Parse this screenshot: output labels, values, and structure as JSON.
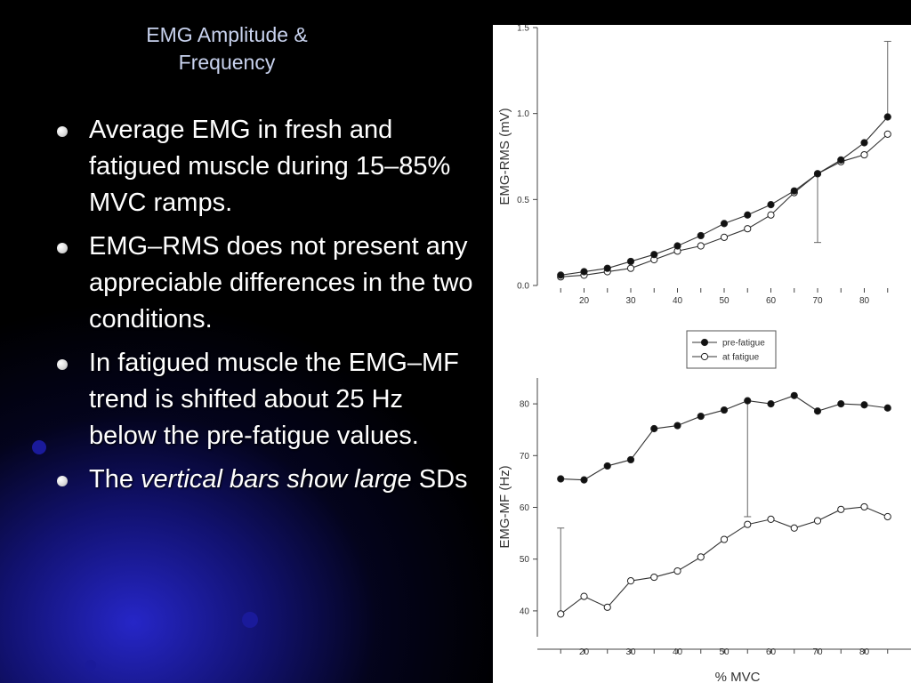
{
  "slide": {
    "title_line1": "EMG Amplitude &",
    "title_line2": "Frequency",
    "bullets": [
      {
        "text": "Average EMG in fresh and fatigued muscle during 15–85% MVC ramps."
      },
      {
        "text": "EMG–RMS does not present any appreciable differences in the two conditions."
      },
      {
        "text": "In fatigued muscle the EMG–MF trend is shifted about 25 Hz below the pre-fatigue values."
      },
      {
        "prefix": "The ",
        "italic": "vertical bars show large",
        "suffix": " SDs"
      }
    ]
  },
  "colors": {
    "background": "#000000",
    "title": "#c8d2ee",
    "bullet_text": "#ffffff",
    "glow": "#2828d2",
    "series_marker": "#111111"
  },
  "chart_data": [
    {
      "type": "line",
      "ylabel": "EMG-RMS (mV)",
      "xlabel": "",
      "xlim": [
        10,
        90
      ],
      "ylim": [
        0,
        1.5
      ],
      "xticks": [
        "20",
        "30",
        "40",
        "50",
        "60",
        "70",
        "80"
      ],
      "yticks": [
        "0.0",
        "0.5",
        "1.0",
        "1.5"
      ],
      "x": [
        15,
        20,
        25,
        30,
        35,
        40,
        45,
        50,
        55,
        60,
        65,
        70,
        75,
        80,
        85
      ],
      "series": [
        {
          "name": "pre-fatigue",
          "marker": "filled",
          "values": [
            0.06,
            0.08,
            0.1,
            0.14,
            0.18,
            0.23,
            0.29,
            0.36,
            0.41,
            0.47,
            0.55,
            0.65,
            0.73,
            0.83,
            0.98
          ]
        },
        {
          "name": "at fatigue",
          "marker": "open",
          "values": [
            0.05,
            0.06,
            0.08,
            0.1,
            0.15,
            0.2,
            0.23,
            0.28,
            0.33,
            0.41,
            0.54,
            0.65,
            0.72,
            0.76,
            0.88
          ]
        }
      ],
      "error_bars": [
        {
          "x": 70,
          "low": 0.25,
          "high": 0.65
        },
        {
          "x": 85,
          "low": 0.98,
          "high": 1.42
        }
      ]
    },
    {
      "type": "line",
      "ylabel": "EMG-MF (Hz)",
      "xlabel": "% MVC",
      "xlim": [
        10,
        90
      ],
      "ylim": [
        35,
        85
      ],
      "xticks": [
        "20",
        "30",
        "40",
        "50",
        "60",
        "70",
        "80"
      ],
      "yticks": [
        "40",
        "50",
        "60",
        "70",
        "80"
      ],
      "x": [
        15,
        20,
        25,
        30,
        35,
        40,
        45,
        50,
        55,
        60,
        65,
        70,
        75,
        80,
        85
      ],
      "series": [
        {
          "name": "pre-fatigue",
          "marker": "filled",
          "values": [
            65.5,
            65.3,
            68.0,
            69.2,
            75.2,
            75.8,
            77.6,
            78.8,
            80.6,
            80.0,
            81.6,
            78.6,
            80.0,
            79.8,
            79.2
          ]
        },
        {
          "name": "at fatigue",
          "marker": "open",
          "values": [
            39.4,
            42.8,
            40.7,
            45.8,
            46.5,
            47.7,
            50.4,
            53.8,
            56.7,
            57.7,
            56.0,
            57.4,
            59.6,
            60.1,
            58.2
          ]
        }
      ],
      "error_bars": [
        {
          "x": 15,
          "low": 39.4,
          "high": 56.0
        },
        {
          "x": 55,
          "low": 58.2,
          "high": 80.6
        }
      ]
    }
  ],
  "legend": {
    "placement": "between-charts",
    "items": [
      {
        "label": "pre-fatigue",
        "marker": "filled"
      },
      {
        "label": "at fatigue",
        "marker": "open"
      }
    ]
  }
}
